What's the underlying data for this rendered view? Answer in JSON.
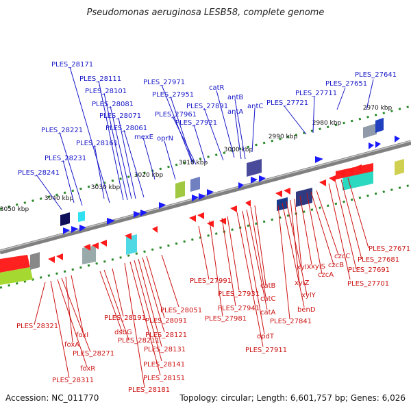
{
  "title": "Pseudomonas aeruginosa LESB58, complete genome",
  "footer": {
    "accession": "Accession: NC_011770",
    "topology": "Topology: circular; Length: 6,601,757 bp; Genes: 6,026"
  },
  "colors": {
    "forward_label": "#1515c8",
    "reverse_label": "#cc1111",
    "forward_arrow": "#1a1aff",
    "reverse_arrow": "#ff1a1a",
    "backbone": "#808080",
    "tick": "#2a8a2a"
  },
  "kbp_marks": [
    "2970 kbp",
    "2980 kbp",
    "2990 kbp",
    "3000 kbp",
    "3010 kbp",
    "3020 kbp",
    "3030 kbp",
    "3040 kbp",
    "3050 kbp"
  ],
  "forward_labels": [
    "PLES_27641",
    "PLES_27651",
    "PLES_27711",
    "PLES_27721",
    "catR",
    "antB",
    "antA",
    "antC",
    "PLES_27891",
    "PLES_27971",
    "PLES_27951",
    "PLES_27961",
    "PLES_27921",
    "oprN",
    "mexE",
    "PLES_28061",
    "PLES_28071",
    "PLES_28081",
    "PLES_28101",
    "PLES_28111",
    "PLES_28171",
    "PLES_28161",
    "PLES_28221",
    "PLES_28231",
    "PLES_28241"
  ],
  "reverse_labels": [
    "PLES_27671",
    "PLES_27681",
    "PLES_27691",
    "PLES_27701",
    "czcC",
    "czcB",
    "czcA",
    "xylS",
    "xylX",
    "xylZ",
    "xylY",
    "benD",
    "PLES_27841",
    "catB",
    "catC",
    "catA",
    "opdT",
    "PLES_27911",
    "PLES_27931",
    "PLES_27941",
    "PLES_27981",
    "PLES_27991",
    "PLES_28051",
    "PLES_28091",
    "PLES_28121",
    "PLES_28131",
    "PLES_28141",
    "PLES_28151",
    "PLES_28181",
    "PLES_28191",
    "PLES_28211",
    "dsbG",
    "foxI",
    "foxA",
    "PLES_28271",
    "foxR",
    "PLES_28311",
    "PLES_28321"
  ]
}
